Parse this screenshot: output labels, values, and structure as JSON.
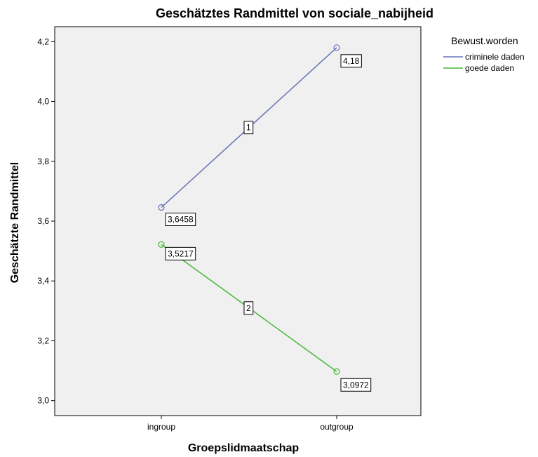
{
  "chart_data": {
    "type": "line",
    "title": "Geschätztes Randmittel von sociale_nabijheid",
    "xlabel": "Groepslidmaatschap",
    "ylabel": "Geschätzte Randmittel",
    "categories": [
      "ingroup",
      "outgroup"
    ],
    "ylim": [
      2.95,
      4.25
    ],
    "yticks": [
      3.0,
      3.2,
      3.4,
      3.6,
      3.8,
      4.0,
      4.2
    ],
    "ytick_labels": [
      "3,0",
      "3,2",
      "3,4",
      "3,6",
      "3,8",
      "4,0",
      "4,2"
    ],
    "grid": false,
    "legend_title": "Bewust.worden",
    "legend_placement": "right",
    "series": [
      {
        "name": "criminele daden",
        "values": [
          3.6458,
          4.18
        ],
        "value_labels": [
          "3,6458",
          "4,18"
        ],
        "line_id": "1",
        "color": "#6674b8"
      },
      {
        "name": "goede daden",
        "values": [
          3.5217,
          3.0972
        ],
        "value_labels": [
          "3,5217",
          "3,0972"
        ],
        "line_id": "2",
        "color": "#45b837"
      }
    ],
    "plot_background": "#f0f0f0"
  }
}
